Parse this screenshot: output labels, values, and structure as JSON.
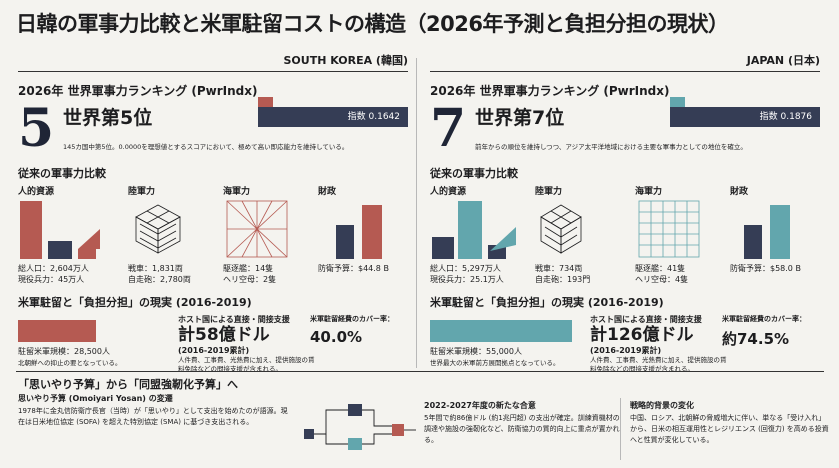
{
  "title": "日韓の軍事力比較と米軍駐留コストの構造（2026年予測と負担分担の現状）",
  "left": {
    "header": "SOUTH KOREA (韓国)",
    "rank_title": "2026年 世界軍事力ランキング (PwrIndx)",
    "rank_number": "5",
    "rank_text": "世界第5位",
    "index_label": "指数 0.1642",
    "index_value": 0.1642,
    "rank_desc": "145カ国中第5位。0.0000を理想値とするスコアにおいて、極めて高い即応能力を維持している。",
    "compare_title": "従来の軍事力比較",
    "personnel": {
      "label": "人的資源",
      "stat1": "総人口：2,604万人",
      "stat2": "現役兵力：45万人"
    },
    "army": {
      "label": "陸軍力",
      "stat1": "戦車：1,831両",
      "stat2": "自走砲：2,780両"
    },
    "navy": {
      "label": "海軍力",
      "stat1": "駆逐艦：14隻",
      "stat2": "ヘリ空母：2隻"
    },
    "finance": {
      "label": "財政",
      "stat1": "防衛予算：$44.8 B"
    },
    "host_title": "米軍駐留と「負担分担」の現実 (2016-2019)",
    "host_stat": "駐留米軍規模：28,500人",
    "host_note": "北朝鮮への抑止の要となっている。",
    "host_support_label": "ホスト国による直接・間接支援",
    "host_support_big": "計58億ドル",
    "host_support_sub": "(2016-2019累計)",
    "host_support_note": "人件費、工事費、光熱費に加え、提供施設の賃料免除などの間接支援が含まれる。",
    "coverage_label": "米軍駐留経費のカバー率：",
    "coverage_value": "40.0%"
  },
  "right": {
    "header": "JAPAN (日本)",
    "rank_title": "2026年 世界軍事力ランキング (PwrIndx)",
    "rank_number": "7",
    "rank_text": "世界第7位",
    "index_label": "指数 0.1876",
    "index_value": 0.1876,
    "rank_desc": "前年からの順位を維持しつつ、アジア太平洋地域における主要な軍事力としての地位を確立。",
    "compare_title": "従来の軍事力比較",
    "personnel": {
      "label": "人的資源",
      "stat1": "総人口：5,297万人",
      "stat2": "現役兵力：25.1万人"
    },
    "army": {
      "label": "陸軍力",
      "stat1": "戦車：734両",
      "stat2": "自走砲：193門"
    },
    "navy": {
      "label": "海軍力",
      "stat1": "駆逐艦：41隻",
      "stat2": "ヘリ空母：4隻"
    },
    "finance": {
      "label": "財政",
      "stat1": "防衛予算：$58.0 B"
    },
    "host_title": "米軍駐留と「負担分担」の現実 (2016-2019)",
    "host_stat": "駐留米軍規模：55,000人",
    "host_note": "世界最大の米軍前方展開拠点となっている。",
    "host_support_label": "ホスト国による直接・間接支援",
    "host_support_big": "計126億ドル",
    "host_support_sub": "(2016-2019累計)",
    "host_support_note": "人件費、工事費、光熱費に加え、提供施設の賃料免除などの間接支援が含まれる。",
    "coverage_label": "米軍駐留経費のカバー率：",
    "coverage_value": "約74.5%"
  },
  "bottom": {
    "title": "「思いやり予算」から「同盟強靭化予算」へ",
    "b1_head": "思いやり予算 (Omoiyari Yosan) の変遷",
    "b1_text": "1978年に金丸信防衛庁長官（当時）が「思いやり」として支出を始めたのが語源。現在は日米地位協定 (SOFA) を超えた特別協定 (SMA) に基づき支出される。",
    "b2_head": "2022-2027年度の新たな合意",
    "b2_text": "5年間で約86億ドル (約1兆円超) の支出が確定。訓練資機材の調達や施設の強靭化など、防衛協力の質的向上に重点が置かれる。",
    "b3_head": "戦略的背景の変化",
    "b3_text": "中国、ロシア、北朝鮮の脅威増大に伴い、単なる「受け入れ」から、日米の相互運用性とレジリエンス (回復力) を高める投資へと性質が変化している。"
  },
  "colors": {
    "red": "#b55a52",
    "teal": "#62a6ad",
    "navy": "#353d55"
  }
}
